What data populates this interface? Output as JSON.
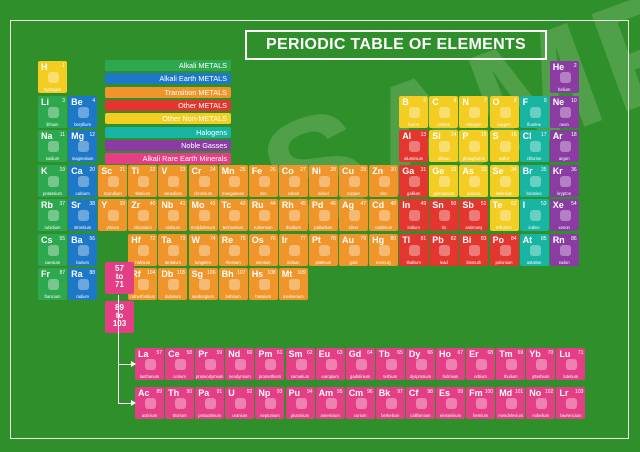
{
  "title": "PERIODIC TABLE OF ELEMENTS",
  "watermark": "SAMPLE",
  "colors": {
    "background": "#2f8f2a",
    "alkali": "#2ea84f",
    "alkaline": "#1e78c8",
    "transition": "#f0952a",
    "other_metal": "#e2362f",
    "nonmetal": "#f3cd21",
    "halogen": "#18b5a2",
    "noble": "#8a3ca3",
    "rare_earth": "#e33e86"
  },
  "legend": [
    {
      "label": "Alkali METALS",
      "group": "alkali"
    },
    {
      "label": "Alkali Earth METALS",
      "group": "alkaline"
    },
    {
      "label": "Transition METALS",
      "group": "transition"
    },
    {
      "label": "Other METALS",
      "group": "other_metal"
    },
    {
      "label": "Other Non-METALS",
      "group": "nonmetal"
    },
    {
      "label": "Halogens",
      "group": "halogen"
    },
    {
      "label": "Noble Gasses",
      "group": "noble"
    },
    {
      "label": "Alkali Rare Earth Minerals",
      "group": "rare_earth"
    }
  ],
  "series_refs": [
    {
      "text": "57\nto\n71"
    },
    {
      "text": "89\nto\n103"
    }
  ],
  "elements": [
    {
      "n": 1,
      "sym": "H",
      "name": "hydrogen",
      "g": "nonmetal",
      "r": 1,
      "c": 1,
      "icon": "balloon-icon"
    },
    {
      "n": 2,
      "sym": "He",
      "name": "helium",
      "g": "noble",
      "r": 1,
      "c": 18,
      "icon": "balloon-icon"
    },
    {
      "n": 3,
      "sym": "Li",
      "name": "lithium",
      "g": "alkali",
      "r": 2,
      "c": 1,
      "icon": "battery-icon"
    },
    {
      "n": 4,
      "sym": "Be",
      "name": "beryllium",
      "g": "alkaline",
      "r": 2,
      "c": 2,
      "icon": "satellite-icon"
    },
    {
      "n": 5,
      "sym": "B",
      "name": "boron",
      "g": "nonmetal",
      "r": 2,
      "c": 13,
      "icon": "glass-icon"
    },
    {
      "n": 6,
      "sym": "C",
      "name": "carbon",
      "g": "nonmetal",
      "r": 2,
      "c": 14,
      "icon": "pencil-icon"
    },
    {
      "n": 7,
      "sym": "N",
      "name": "nitrogen",
      "g": "nonmetal",
      "r": 2,
      "c": 15,
      "icon": "bottle-icon"
    },
    {
      "n": 8,
      "sym": "O",
      "name": "oxygen",
      "g": "nonmetal",
      "r": 2,
      "c": 16,
      "icon": "tank-icon"
    },
    {
      "n": 9,
      "sym": "F",
      "name": "fluorine",
      "g": "halogen",
      "r": 2,
      "c": 17,
      "icon": "toothpaste-icon"
    },
    {
      "n": 10,
      "sym": "Ne",
      "name": "neon",
      "g": "noble",
      "r": 2,
      "c": 18,
      "icon": "sign-icon"
    },
    {
      "n": 11,
      "sym": "Na",
      "name": "sodium",
      "g": "alkali",
      "r": 3,
      "c": 1,
      "icon": "salt-icon"
    },
    {
      "n": 12,
      "sym": "Mg",
      "name": "magnesium",
      "g": "alkaline",
      "r": 3,
      "c": 2,
      "icon": "leaf-icon"
    },
    {
      "n": 13,
      "sym": "Al",
      "name": "aluminium",
      "g": "other_metal",
      "r": 3,
      "c": 13,
      "icon": "can-icon"
    },
    {
      "n": 14,
      "sym": "Si",
      "name": "silicon",
      "g": "nonmetal",
      "r": 3,
      "c": 14,
      "icon": "chip-icon"
    },
    {
      "n": 15,
      "sym": "P",
      "name": "phosphorus",
      "g": "nonmetal",
      "r": 3,
      "c": 15,
      "icon": "matches-icon"
    },
    {
      "n": 16,
      "sym": "S",
      "name": "sulfur",
      "g": "nonmetal",
      "r": 3,
      "c": 16,
      "icon": "tyre-icon"
    },
    {
      "n": 17,
      "sym": "Cl",
      "name": "chlorine",
      "g": "halogen",
      "r": 3,
      "c": 17,
      "icon": "bottle-icon"
    },
    {
      "n": 18,
      "sym": "Ar",
      "name": "argon",
      "g": "noble",
      "r": 3,
      "c": 18,
      "icon": "bulb-icon"
    },
    {
      "n": 19,
      "sym": "K",
      "name": "potassium",
      "g": "alkali",
      "r": 4,
      "c": 1,
      "icon": "banana-icon"
    },
    {
      "n": 20,
      "sym": "Ca",
      "name": "calcium",
      "g": "alkaline",
      "r": 4,
      "c": 2,
      "icon": "bone-icon"
    },
    {
      "n": 21,
      "sym": "Sc",
      "name": "scandium",
      "g": "transition",
      "r": 4,
      "c": 3,
      "icon": "bike-icon"
    },
    {
      "n": 22,
      "sym": "Ti",
      "name": "titanium",
      "g": "transition",
      "r": 4,
      "c": 4,
      "icon": "knee-icon"
    },
    {
      "n": 23,
      "sym": "V",
      "name": "vanadium",
      "g": "transition",
      "r": 4,
      "c": 5,
      "icon": "tools-icon"
    },
    {
      "n": 24,
      "sym": "Cr",
      "name": "chromium",
      "g": "transition",
      "r": 4,
      "c": 6,
      "icon": "faucet-icon"
    },
    {
      "n": 25,
      "sym": "Mn",
      "name": "manganese",
      "g": "transition",
      "r": 4,
      "c": 7,
      "icon": "rail-icon"
    },
    {
      "n": 26,
      "sym": "Fe",
      "name": "iron",
      "g": "transition",
      "r": 4,
      "c": 8,
      "icon": "nails-icon"
    },
    {
      "n": 27,
      "sym": "Co",
      "name": "cobalt",
      "g": "transition",
      "r": 4,
      "c": 9,
      "icon": "magnet-icon"
    },
    {
      "n": 28,
      "sym": "Ni",
      "name": "nickel",
      "g": "transition",
      "r": 4,
      "c": 10,
      "icon": "coin-icon"
    },
    {
      "n": 29,
      "sym": "Cu",
      "name": "copper",
      "g": "transition",
      "r": 4,
      "c": 11,
      "icon": "pipe-icon"
    },
    {
      "n": 30,
      "sym": "Zn",
      "name": "zinc",
      "g": "transition",
      "r": 4,
      "c": 12,
      "icon": "shoe-icon"
    },
    {
      "n": 31,
      "sym": "Ga",
      "name": "gallium",
      "g": "other_metal",
      "r": 4,
      "c": 13,
      "icon": "led-icon"
    },
    {
      "n": 32,
      "sym": "Ge",
      "name": "germanium",
      "g": "nonmetal",
      "r": 4,
      "c": 14,
      "icon": "lens-icon"
    },
    {
      "n": 33,
      "sym": "As",
      "name": "arsenic",
      "g": "nonmetal",
      "r": 4,
      "c": 15,
      "icon": "poison-icon"
    },
    {
      "n": 34,
      "sym": "Se",
      "name": "selenium",
      "g": "nonmetal",
      "r": 4,
      "c": 16,
      "icon": "shampoo-icon"
    },
    {
      "n": 35,
      "sym": "Br",
      "name": "bromine",
      "g": "halogen",
      "r": 4,
      "c": 17,
      "icon": "flask-icon"
    },
    {
      "n": 36,
      "sym": "Kr",
      "name": "krypton",
      "g": "noble",
      "r": 4,
      "c": 18,
      "icon": "bulb-icon"
    },
    {
      "n": 37,
      "sym": "Rb",
      "name": "rubidium",
      "g": "alkali",
      "r": 5,
      "c": 1,
      "icon": "clock-icon"
    },
    {
      "n": 38,
      "sym": "Sr",
      "name": "strontium",
      "g": "alkaline",
      "r": 5,
      "c": 2,
      "icon": "firework-icon"
    },
    {
      "n": 39,
      "sym": "Y",
      "name": "yttrium",
      "g": "transition",
      "r": 5,
      "c": 3,
      "icon": "laser-icon"
    },
    {
      "n": 40,
      "sym": "Zr",
      "name": "zirconium",
      "g": "transition",
      "r": 5,
      "c": 4,
      "icon": "gem-icon"
    },
    {
      "n": 41,
      "sym": "Nb",
      "name": "niobium",
      "g": "transition",
      "r": 5,
      "c": 5,
      "icon": "glasses-icon"
    },
    {
      "n": 42,
      "sym": "Mo",
      "name": "molybdenum",
      "g": "transition",
      "r": 5,
      "c": 6,
      "icon": "drill-icon"
    },
    {
      "n": 43,
      "sym": "Tc",
      "name": "technetium",
      "g": "transition",
      "r": 5,
      "c": 7,
      "icon": "scan-icon"
    },
    {
      "n": 44,
      "sym": "Ru",
      "name": "ruthenium",
      "g": "transition",
      "r": 5,
      "c": 8,
      "icon": "pen-icon"
    },
    {
      "n": 45,
      "sym": "Rh",
      "name": "rhodium",
      "g": "transition",
      "r": 5,
      "c": 9,
      "icon": "mirror-icon"
    },
    {
      "n": 46,
      "sym": "Pd",
      "name": "palladium",
      "g": "transition",
      "r": 5,
      "c": 10,
      "icon": "crown-icon"
    },
    {
      "n": 47,
      "sym": "Ag",
      "name": "silver",
      "g": "transition",
      "r": 5,
      "c": 11,
      "icon": "cutlery-icon"
    },
    {
      "n": 48,
      "sym": "Cd",
      "name": "cadmium",
      "g": "transition",
      "r": 5,
      "c": 12,
      "icon": "battery-icon"
    },
    {
      "n": 49,
      "sym": "In",
      "name": "indium",
      "g": "other_metal",
      "r": 5,
      "c": 13,
      "icon": "screen-icon"
    },
    {
      "n": 50,
      "sym": "Sn",
      "name": "tin",
      "g": "other_metal",
      "r": 5,
      "c": 14,
      "icon": "tin-icon"
    },
    {
      "n": 51,
      "sym": "Sb",
      "name": "antimony",
      "g": "other_metal",
      "r": 5,
      "c": 15,
      "icon": "fire-icon"
    },
    {
      "n": 52,
      "sym": "Te",
      "name": "tellurium",
      "g": "nonmetal",
      "r": 5,
      "c": 16,
      "icon": "disc-icon"
    },
    {
      "n": 53,
      "sym": "I",
      "name": "iodine",
      "g": "halogen",
      "r": 5,
      "c": 17,
      "icon": "medicine-icon"
    },
    {
      "n": 54,
      "sym": "Xe",
      "name": "xenon",
      "g": "noble",
      "r": 5,
      "c": 18,
      "icon": "lamp-icon"
    },
    {
      "n": 55,
      "sym": "Cs",
      "name": "caesium",
      "g": "alkali",
      "r": 6,
      "c": 1,
      "icon": "clock-icon"
    },
    {
      "n": 56,
      "sym": "Ba",
      "name": "barium",
      "g": "alkaline",
      "r": 6,
      "c": 2,
      "icon": "teapot-icon"
    },
    {
      "n": 72,
      "sym": "Hf",
      "name": "hafnium",
      "g": "transition",
      "r": 6,
      "c": 4,
      "icon": "reactor-icon"
    },
    {
      "n": 73,
      "sym": "Ta",
      "name": "tantalum",
      "g": "transition",
      "r": 6,
      "c": 5,
      "icon": "phone-icon"
    },
    {
      "n": 74,
      "sym": "W",
      "name": "tungsten",
      "g": "transition",
      "r": 6,
      "c": 6,
      "icon": "bulb-icon"
    },
    {
      "n": 75,
      "sym": "Re",
      "name": "rhenium",
      "g": "transition",
      "r": 6,
      "c": 7,
      "icon": "engine-icon"
    },
    {
      "n": 76,
      "sym": "Os",
      "name": "osmium",
      "g": "transition",
      "r": 6,
      "c": 8,
      "icon": "pen-icon"
    },
    {
      "n": 77,
      "sym": "Ir",
      "name": "iridium",
      "g": "transition",
      "r": 6,
      "c": 9,
      "icon": "plug-icon"
    },
    {
      "n": 78,
      "sym": "Pt",
      "name": "platinum",
      "g": "transition",
      "r": 6,
      "c": 10,
      "icon": "ring-icon"
    },
    {
      "n": 79,
      "sym": "Au",
      "name": "gold",
      "g": "transition",
      "r": 6,
      "c": 11,
      "icon": "bar-icon"
    },
    {
      "n": 80,
      "sym": "Hg",
      "name": "mercury",
      "g": "transition",
      "r": 6,
      "c": 12,
      "icon": "thermometer-icon"
    },
    {
      "n": 81,
      "sym": "Tl",
      "name": "thallium",
      "g": "other_metal",
      "r": 6,
      "c": 13,
      "icon": "bottle-icon"
    },
    {
      "n": 82,
      "sym": "Pb",
      "name": "lead",
      "g": "other_metal",
      "r": 6,
      "c": 14,
      "icon": "weight-icon"
    },
    {
      "n": 83,
      "sym": "Bi",
      "name": "bismuth",
      "g": "other_metal",
      "r": 6,
      "c": 15,
      "icon": "medicine-icon"
    },
    {
      "n": 84,
      "sym": "Po",
      "name": "polonium",
      "g": "other_metal",
      "r": 6,
      "c": 16,
      "icon": "radiation-icon"
    },
    {
      "n": 85,
      "sym": "At",
      "name": "astatine",
      "g": "halogen",
      "r": 6,
      "c": 17,
      "icon": "radiation-icon"
    },
    {
      "n": 86,
      "sym": "Rn",
      "name": "radon",
      "g": "noble",
      "r": 6,
      "c": 18,
      "icon": "radiation-icon"
    },
    {
      "n": 87,
      "sym": "Fr",
      "name": "francium",
      "g": "alkali",
      "r": 7,
      "c": 1,
      "icon": "radiation-icon"
    },
    {
      "n": 88,
      "sym": "Ra",
      "name": "radium",
      "g": "alkaline",
      "r": 7,
      "c": 2,
      "icon": "radiation-icon"
    },
    {
      "n": 104,
      "sym": "Rf",
      "name": "rutherfordium",
      "g": "transition",
      "r": 7,
      "c": 4,
      "icon": "radiation-icon"
    },
    {
      "n": 105,
      "sym": "Db",
      "name": "dubnium",
      "g": "transition",
      "r": 7,
      "c": 5,
      "icon": "radiation-icon"
    },
    {
      "n": 106,
      "sym": "Sg",
      "name": "seaborgium",
      "g": "transition",
      "r": 7,
      "c": 6,
      "icon": "radiation-icon"
    },
    {
      "n": 107,
      "sym": "Bh",
      "name": "bohrium",
      "g": "transition",
      "r": 7,
      "c": 7,
      "icon": "radiation-icon"
    },
    {
      "n": 108,
      "sym": "Hs",
      "name": "hassium",
      "g": "transition",
      "r": 7,
      "c": 8,
      "icon": "radiation-icon"
    },
    {
      "n": 109,
      "sym": "Mt",
      "name": "meitnerium",
      "g": "transition",
      "r": 7,
      "c": 9,
      "icon": "radiation-icon"
    }
  ],
  "lanthanides": [
    {
      "n": 57,
      "sym": "La",
      "name": "lanthanum"
    },
    {
      "n": 58,
      "sym": "Ce",
      "name": "cerium"
    },
    {
      "n": 59,
      "sym": "Pr",
      "name": "praseodymium"
    },
    {
      "n": 60,
      "sym": "Nd",
      "name": "neodymium"
    },
    {
      "n": 61,
      "sym": "Pm",
      "name": "promethium"
    },
    {
      "n": 62,
      "sym": "Sm",
      "name": "samarium"
    },
    {
      "n": 63,
      "sym": "Eu",
      "name": "europium"
    },
    {
      "n": 64,
      "sym": "Gd",
      "name": "gadolinium"
    },
    {
      "n": 65,
      "sym": "Tb",
      "name": "terbium"
    },
    {
      "n": 66,
      "sym": "Dy",
      "name": "dysprosium"
    },
    {
      "n": 67,
      "sym": "Ho",
      "name": "holmium"
    },
    {
      "n": 68,
      "sym": "Er",
      "name": "erbium"
    },
    {
      "n": 69,
      "sym": "Tm",
      "name": "thulium"
    },
    {
      "n": 70,
      "sym": "Yb",
      "name": "ytterbium"
    },
    {
      "n": 71,
      "sym": "Lu",
      "name": "lutetium"
    }
  ],
  "actinides": [
    {
      "n": 89,
      "sym": "Ac",
      "name": "actinium"
    },
    {
      "n": 90,
      "sym": "Th",
      "name": "thorium"
    },
    {
      "n": 91,
      "sym": "Pa",
      "name": "protactinium"
    },
    {
      "n": 92,
      "sym": "U",
      "name": "uranium"
    },
    {
      "n": 93,
      "sym": "Np",
      "name": "neptunium"
    },
    {
      "n": 94,
      "sym": "Pu",
      "name": "plutonium"
    },
    {
      "n": 95,
      "sym": "Am",
      "name": "americium"
    },
    {
      "n": 96,
      "sym": "Cm",
      "name": "curium"
    },
    {
      "n": 97,
      "sym": "Bk",
      "name": "berkelium"
    },
    {
      "n": 98,
      "sym": "Cf",
      "name": "californium"
    },
    {
      "n": 99,
      "sym": "Es",
      "name": "einsteinium"
    },
    {
      "n": 100,
      "sym": "Fm",
      "name": "fermium"
    },
    {
      "n": 101,
      "sym": "Md",
      "name": "mendelevium"
    },
    {
      "n": 102,
      "sym": "No",
      "name": "nobelium"
    },
    {
      "n": 103,
      "sym": "Lr",
      "name": "lawrencium"
    }
  ]
}
